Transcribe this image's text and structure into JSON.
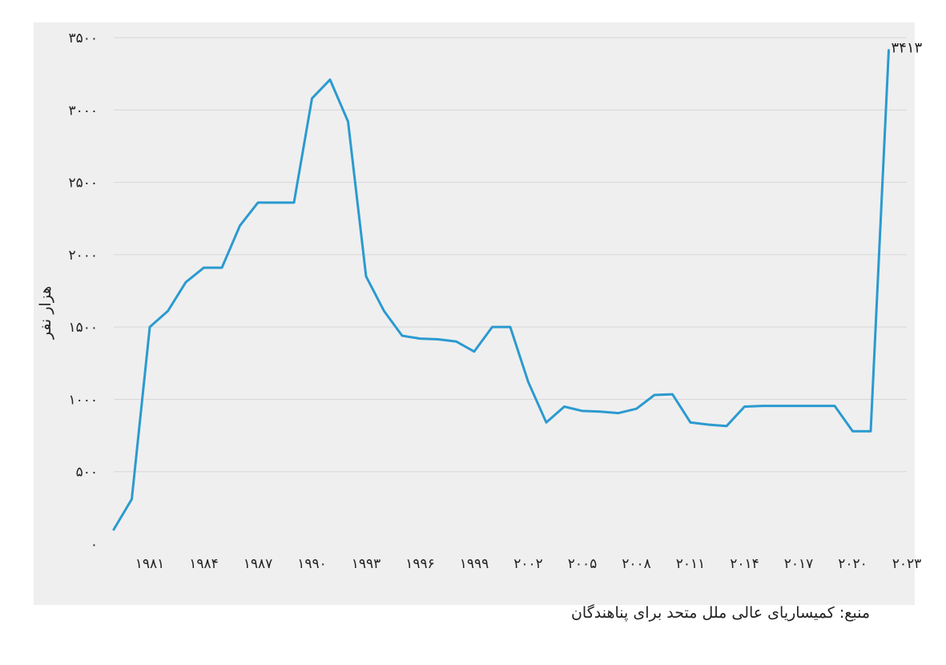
{
  "chart_data": {
    "type": "line",
    "title": "",
    "xlabel": "",
    "ylabel": "هزار نفر",
    "ylim": [
      0,
      3500
    ],
    "xlim": [
      1979,
      2023
    ],
    "y_ticks": [
      0,
      500,
      1000,
      1500,
      2000,
      2500,
      3000,
      3500
    ],
    "y_tick_labels": [
      "۰",
      "۵۰۰",
      "۱۰۰۰",
      "۱۵۰۰",
      "۲۰۰۰",
      "۲۵۰۰",
      "۳۰۰۰",
      "۳۵۰۰"
    ],
    "x_ticks": [
      1981,
      1984,
      1987,
      1990,
      1993,
      1996,
      1999,
      2002,
      2005,
      2008,
      2011,
      2014,
      2017,
      2020,
      2023
    ],
    "x_tick_labels": [
      "۱۹۸۱",
      "۱۹۸۴",
      "۱۹۸۷",
      "۱۹۹۰",
      "۱۹۹۳",
      "۱۹۹۶",
      "۱۹۹۹",
      "۲۰۰۲",
      "۲۰۰۵",
      "۲۰۰۸",
      "۲۰۱۱",
      "۲۰۱۴",
      "۲۰۱۷",
      "۲۰۲۰",
      "۲۰۲۳"
    ],
    "grid": true,
    "line_color": "#2b9ad0",
    "series": [
      {
        "x": [
          1979,
          1980,
          1981,
          1982,
          1983,
          1984,
          1985,
          1986,
          1987,
          1988,
          1989,
          1990,
          1991,
          1992,
          1993,
          1994,
          1995,
          1996,
          1997,
          1998,
          1999,
          2000,
          2001,
          2002,
          2003,
          2004,
          2005,
          2006,
          2007,
          2008,
          2009,
          2010,
          2011,
          2012,
          2013,
          2014,
          2015,
          2016,
          2017,
          2018,
          2019,
          2020,
          2021,
          2022
        ],
        "values": [
          100,
          310,
          1500,
          1610,
          1810,
          1910,
          1910,
          2200,
          2360,
          2360,
          2360,
          3080,
          3210,
          2920,
          1850,
          1610,
          1440,
          1420,
          1415,
          1400,
          1330,
          1500,
          1500,
          1120,
          840,
          950,
          920,
          915,
          905,
          935,
          1030,
          1035,
          840,
          825,
          815,
          950,
          955,
          955,
          955,
          955,
          955,
          780,
          780,
          3413
        ]
      }
    ],
    "annotations": [
      {
        "x": 2022,
        "y": 3413,
        "text": "۳۴۱۳"
      }
    ]
  },
  "source_note": "منبع:  کمیساریای عالی ملل متحد برای پناهندگان"
}
